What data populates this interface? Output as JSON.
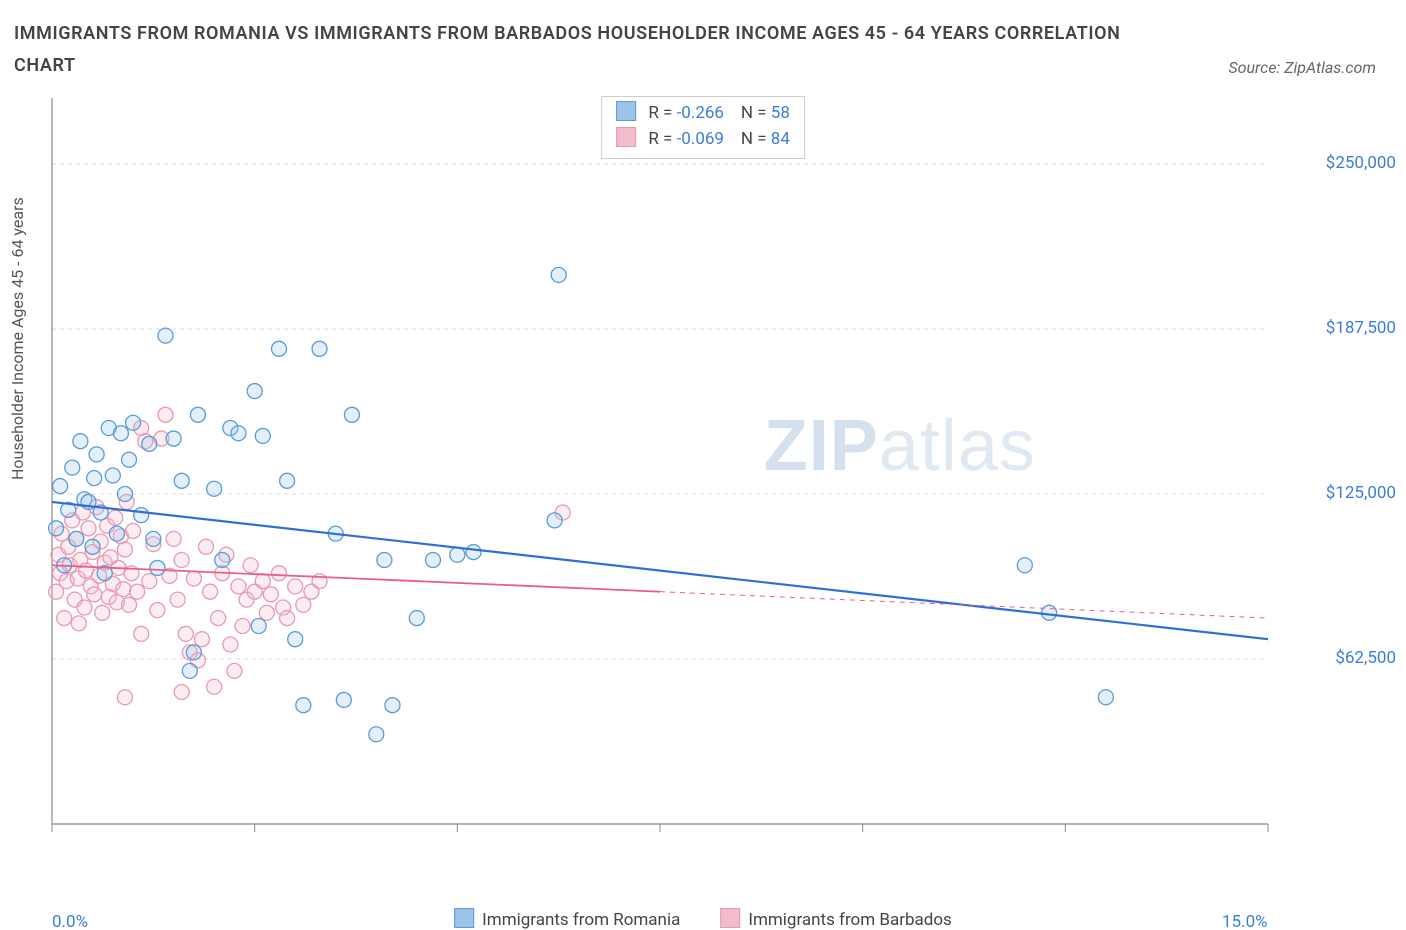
{
  "title": "IMMIGRANTS FROM ROMANIA VS IMMIGRANTS FROM BARBADOS HOUSEHOLDER INCOME AGES 45 - 64 YEARS CORRELATION CHART",
  "source": "Source: ZipAtlas.com",
  "watermark_bold": "ZIP",
  "watermark_light": "atlas",
  "ylabel": "Householder Income Ages 45 - 64 years",
  "chart": {
    "type": "scatter",
    "xlim": [
      0,
      15
    ],
    "ylim": [
      0,
      275000
    ],
    "xticks": [
      0,
      2.5,
      5,
      7.5,
      10,
      12.5,
      15
    ],
    "xtick_labels_shown": {
      "0": "0.0%",
      "15": "15.0%"
    },
    "yticks": [
      62500,
      125000,
      187500,
      250000
    ],
    "ytick_labels": [
      "$62,500",
      "$125,000",
      "$187,500",
      "$250,000"
    ],
    "grid_color": "#d8d8d8",
    "axis_color": "#888888",
    "background_color": "#ffffff",
    "marker_radius": 7.5,
    "marker_stroke_width": 1.3,
    "marker_fill_opacity": 0.28,
    "series": [
      {
        "name": "Immigrants from Romania",
        "color_stroke": "#5a9bd8",
        "color_fill": "#9cc4e8",
        "trend_color": "#2e6fd6",
        "trend_width": 2.2,
        "R": "-0.266",
        "N": "58",
        "trend": {
          "x1": 0,
          "y1": 122000,
          "x2": 15,
          "y2": 70000
        },
        "points": [
          [
            0.05,
            112000
          ],
          [
            0.1,
            128000
          ],
          [
            0.15,
            98000
          ],
          [
            0.2,
            119000
          ],
          [
            0.25,
            135000
          ],
          [
            0.3,
            108000
          ],
          [
            0.35,
            145000
          ],
          [
            0.4,
            123000
          ],
          [
            0.5,
            105000
          ],
          [
            0.55,
            140000
          ],
          [
            0.6,
            118000
          ],
          [
            0.65,
            95000
          ],
          [
            0.7,
            150000
          ],
          [
            0.75,
            132000
          ],
          [
            0.8,
            110000
          ],
          [
            0.85,
            148000
          ],
          [
            0.9,
            125000
          ],
          [
            0.95,
            138000
          ],
          [
            1.0,
            152000
          ],
          [
            1.1,
            117000
          ],
          [
            1.2,
            144000
          ],
          [
            1.25,
            108000
          ],
          [
            1.3,
            97000
          ],
          [
            1.4,
            185000
          ],
          [
            1.5,
            146000
          ],
          [
            1.6,
            130000
          ],
          [
            1.7,
            58000
          ],
          [
            1.75,
            65000
          ],
          [
            1.8,
            155000
          ],
          [
            2.0,
            127000
          ],
          [
            2.1,
            100000
          ],
          [
            2.2,
            150000
          ],
          [
            2.3,
            148000
          ],
          [
            2.5,
            164000
          ],
          [
            2.55,
            75000
          ],
          [
            2.6,
            147000
          ],
          [
            2.8,
            180000
          ],
          [
            2.9,
            130000
          ],
          [
            3.0,
            70000
          ],
          [
            3.1,
            45000
          ],
          [
            3.3,
            180000
          ],
          [
            3.5,
            110000
          ],
          [
            3.6,
            47000
          ],
          [
            3.7,
            155000
          ],
          [
            4.0,
            34000
          ],
          [
            4.1,
            100000
          ],
          [
            4.2,
            45000
          ],
          [
            4.5,
            78000
          ],
          [
            4.7,
            100000
          ],
          [
            5.0,
            102000
          ],
          [
            5.2,
            103000
          ],
          [
            6.2,
            115000
          ],
          [
            6.25,
            208000
          ],
          [
            12.0,
            98000
          ],
          [
            12.3,
            80000
          ],
          [
            13.0,
            48000
          ],
          [
            0.45,
            122000
          ],
          [
            0.52,
            131000
          ]
        ]
      },
      {
        "name": "Immigrants from Barbados",
        "color_stroke": "#e89ab0",
        "color_fill": "#f2bccb",
        "trend_color": "#e85f8a",
        "trend_width": 1.8,
        "R": "-0.069",
        "N": "84",
        "trend": {
          "x1": 0,
          "y1": 98000,
          "x2": 7.5,
          "y2": 88000
        },
        "trend_dash": {
          "x1": 7.5,
          "y1": 88000,
          "x2": 15,
          "y2": 78000
        },
        "points": [
          [
            0.05,
            88000
          ],
          [
            0.08,
            102000
          ],
          [
            0.1,
            95000
          ],
          [
            0.12,
            110000
          ],
          [
            0.15,
            78000
          ],
          [
            0.18,
            92000
          ],
          [
            0.2,
            105000
          ],
          [
            0.22,
            98000
          ],
          [
            0.25,
            115000
          ],
          [
            0.28,
            85000
          ],
          [
            0.3,
            108000
          ],
          [
            0.32,
            93000
          ],
          [
            0.35,
            100000
          ],
          [
            0.38,
            118000
          ],
          [
            0.4,
            82000
          ],
          [
            0.42,
            96000
          ],
          [
            0.45,
            112000
          ],
          [
            0.48,
            90000
          ],
          [
            0.5,
            103000
          ],
          [
            0.52,
            87000
          ],
          [
            0.55,
            120000
          ],
          [
            0.58,
            94000
          ],
          [
            0.6,
            107000
          ],
          [
            0.62,
            80000
          ],
          [
            0.65,
            99000
          ],
          [
            0.68,
            113000
          ],
          [
            0.7,
            86000
          ],
          [
            0.72,
            101000
          ],
          [
            0.75,
            91000
          ],
          [
            0.78,
            116000
          ],
          [
            0.8,
            84000
          ],
          [
            0.82,
            97000
          ],
          [
            0.85,
            109000
          ],
          [
            0.88,
            89000
          ],
          [
            0.9,
            104000
          ],
          [
            0.92,
            122000
          ],
          [
            0.95,
            83000
          ],
          [
            0.98,
            95000
          ],
          [
            1.0,
            111000
          ],
          [
            1.05,
            88000
          ],
          [
            1.1,
            150000
          ],
          [
            1.15,
            145000
          ],
          [
            1.2,
            92000
          ],
          [
            1.25,
            106000
          ],
          [
            1.3,
            81000
          ],
          [
            1.35,
            146000
          ],
          [
            1.4,
            155000
          ],
          [
            1.45,
            94000
          ],
          [
            1.5,
            108000
          ],
          [
            1.55,
            85000
          ],
          [
            1.6,
            100000
          ],
          [
            1.65,
            72000
          ],
          [
            1.7,
            65000
          ],
          [
            1.75,
            93000
          ],
          [
            1.8,
            62000
          ],
          [
            1.85,
            70000
          ],
          [
            1.9,
            105000
          ],
          [
            1.95,
            88000
          ],
          [
            2.0,
            52000
          ],
          [
            2.05,
            78000
          ],
          [
            2.1,
            95000
          ],
          [
            2.15,
            102000
          ],
          [
            2.2,
            68000
          ],
          [
            2.25,
            58000
          ],
          [
            2.3,
            90000
          ],
          [
            2.35,
            75000
          ],
          [
            2.4,
            85000
          ],
          [
            2.45,
            98000
          ],
          [
            2.5,
            88000
          ],
          [
            2.6,
            92000
          ],
          [
            2.65,
            80000
          ],
          [
            2.7,
            87000
          ],
          [
            2.8,
            95000
          ],
          [
            2.85,
            82000
          ],
          [
            2.9,
            78000
          ],
          [
            3.0,
            90000
          ],
          [
            3.1,
            83000
          ],
          [
            3.2,
            88000
          ],
          [
            3.3,
            92000
          ],
          [
            0.9,
            48000
          ],
          [
            1.6,
            50000
          ],
          [
            1.1,
            72000
          ],
          [
            6.3,
            118000
          ],
          [
            0.33,
            76000
          ]
        ]
      }
    ]
  },
  "legend": {
    "series1": "Immigrants from Romania",
    "series2": "Immigrants from Barbados"
  },
  "stats_labels": {
    "R": "R =",
    "N": "N ="
  }
}
